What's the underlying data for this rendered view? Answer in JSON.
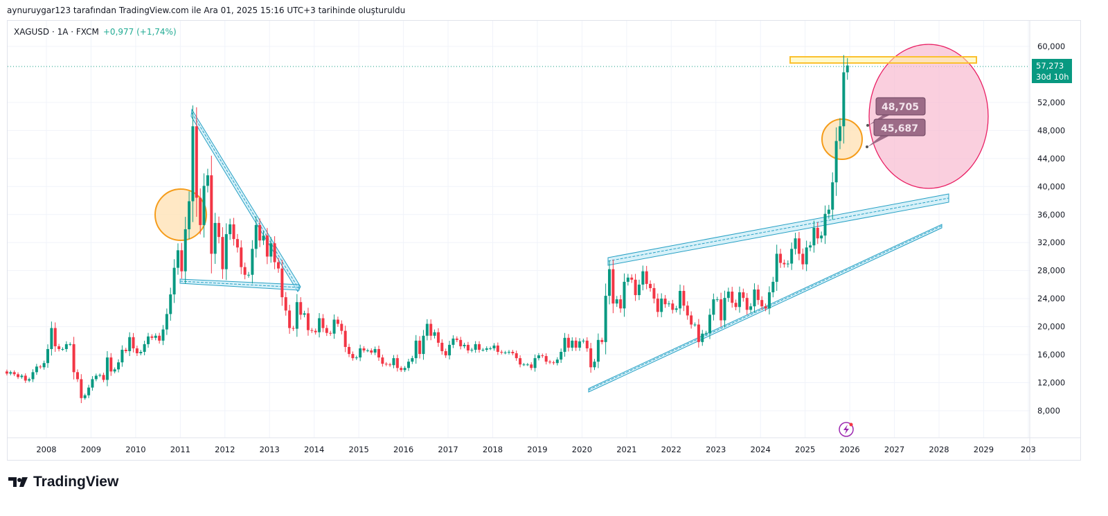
{
  "caption": "aynuruygar123 tarafından TradingView.com ile Ara 01, 2025 15:16 UTC+3 tarihinde oluşturuldu",
  "legend": {
    "symbol": "XAGUSD · 1A · FXCM",
    "change": "+0,977 (+1,74%)"
  },
  "price_label": {
    "price": "57,273",
    "countdown": "30d 10h",
    "color": "#089981"
  },
  "callouts": [
    "48,705",
    "45,687"
  ],
  "y_axis": [
    "60,000",
    "52,000",
    "48,000",
    "44,000",
    "40,000",
    "36,000",
    "32,000",
    "28,000",
    "24,000",
    "20,000",
    "16,000",
    "12,000",
    "8,000"
  ],
  "y_values": [
    60,
    52,
    48,
    44,
    40,
    36,
    32,
    28,
    24,
    20,
    16,
    12,
    8
  ],
  "x_axis": [
    "2008",
    "2009",
    "2010",
    "2011",
    "2012",
    "2013",
    "2014",
    "2015",
    "2016",
    "2017",
    "2018",
    "2019",
    "2020",
    "2021",
    "2022",
    "2023",
    "2024",
    "2025",
    "2026",
    "2027",
    "2028",
    "2029",
    "203"
  ],
  "logo": "TradingView",
  "colors": {
    "up": "#089981",
    "down": "#f23645"
  },
  "chart_data": {
    "type": "candlestick",
    "symbol": "XAGUSD",
    "interval": "1 month",
    "start": "2007-02",
    "closes": [
      13.3,
      13.5,
      13.2,
      12.8,
      13.0,
      12.3,
      12.5,
      13.5,
      14.3,
      14.2,
      14.8,
      16.8,
      19.8,
      17.2,
      16.8,
      16.8,
      17.5,
      17.5,
      13.5,
      12.5,
      9.8,
      10.2,
      11.3,
      12.5,
      13.0,
      13.1,
      12.4,
      15.6,
      13.6,
      13.9,
      14.9,
      16.7,
      16.5,
      18.5,
      16.9,
      16.2,
      16.4,
      17.5,
      18.6,
      18.4,
      18.7,
      18.0,
      19.6,
      21.8,
      24.6,
      28.4,
      30.9,
      27.9,
      33.9,
      37.9,
      48.6,
      38.4,
      34.5,
      40.1,
      41.6,
      30.4,
      34.8,
      32.8,
      28.2,
      33.2,
      34.6,
      32.5,
      31.3,
      28.5,
      27.4,
      27.4,
      31.1,
      34.5,
      32.3,
      33.0,
      30.0,
      31.9,
      29.2,
      28.3,
      24.2,
      22.3,
      19.8,
      19.7,
      23.5,
      21.7,
      21.9,
      19.5,
      19.4,
      19.2,
      21.2,
      19.8,
      19.1,
      19.0,
      21.0,
      20.4,
      19.4,
      17.1,
      16.1,
      15.5,
      15.6,
      16.9,
      16.6,
      16.6,
      16.3,
      16.8,
      15.6,
      14.7,
      14.6,
      14.5,
      15.5,
      14.1,
      13.8,
      14.1,
      15.0,
      15.5,
      18.0,
      16.1,
      18.7,
      20.4,
      18.7,
      19.2,
      17.7,
      16.5,
      15.9,
      17.4,
      18.3,
      18.1,
      17.2,
      17.4,
      16.6,
      16.7,
      17.5,
      16.7,
      16.7,
      16.9,
      16.9,
      17.3,
      16.4,
      16.3,
      16.3,
      16.4,
      16.2,
      15.5,
      14.6,
      14.6,
      14.6,
      14.1,
      15.5,
      15.9,
      15.8,
      15.0,
      14.9,
      14.8,
      15.3,
      16.4,
      18.4,
      17.0,
      18.0,
      17.0,
      17.9,
      18.0,
      16.9,
      14.2,
      15.0,
      18.1,
      17.8,
      24.4,
      28.2,
      23.3,
      23.9,
      22.6,
      26.4,
      27.0,
      26.7,
      24.5,
      26.0,
      27.9,
      26.1,
      25.5,
      24.0,
      22.1,
      24.0,
      23.2,
      23.3,
      22.4,
      22.6,
      25.1,
      23.0,
      21.6,
      20.3,
      20.3,
      17.8,
      19.0,
      19.1,
      21.7,
      23.9,
      23.9,
      20.9,
      24.1,
      25.0,
      23.4,
      22.8,
      24.9,
      24.1,
      22.4,
      22.9,
      25.3,
      23.8,
      22.9,
      22.6,
      24.9,
      26.4,
      30.4,
      29.1,
      28.9,
      29.0,
      31.1,
      32.6,
      30.4,
      28.9,
      31.3,
      31.6,
      34.1,
      32.6,
      33.0,
      36.1,
      36.7,
      40.6,
      46.5,
      48.6,
      56.3,
      57.273
    ],
    "ylim": [
      8,
      62
    ],
    "last_price": 57.273
  }
}
